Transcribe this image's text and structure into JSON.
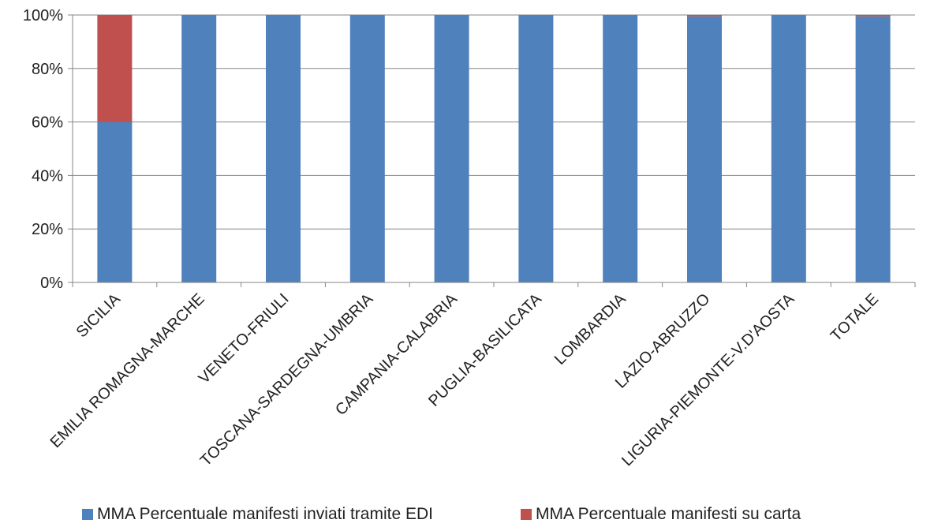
{
  "chart_data": {
    "type": "bar",
    "stacked": true,
    "percent": true,
    "categories": [
      "SICILIA",
      "EMILIA ROMAGNA-MARCHE",
      "VENETO-FRIULI",
      "TOSCANA-SARDEGNA-UMBRIA",
      "CAMPANIA-CALABRIA",
      "PUGLIA-BASILICATA",
      "LOMBARDIA",
      "LAZIO-ABRUZZO",
      "LIGURIA-PIEMONTE-V.D'AOSTA",
      "TOTALE"
    ],
    "series": [
      {
        "name": "MMA Percentuale manifesti inviati  tramite EDI",
        "color": "#4f81bd",
        "values": [
          60,
          100,
          100,
          100,
          100,
          100,
          100,
          99.5,
          100,
          99.5
        ]
      },
      {
        "name": "MMA Percentuale manifesti su carta",
        "color": "#c0504d",
        "values": [
          40,
          0,
          0,
          0,
          0,
          0,
          0,
          0.5,
          0,
          0.5
        ]
      }
    ],
    "ylim": [
      0,
      100
    ],
    "yticks": [
      "0%",
      "20%",
      "40%",
      "60%",
      "80%",
      "100%"
    ],
    "grid": true,
    "legend_position": "bottom"
  }
}
